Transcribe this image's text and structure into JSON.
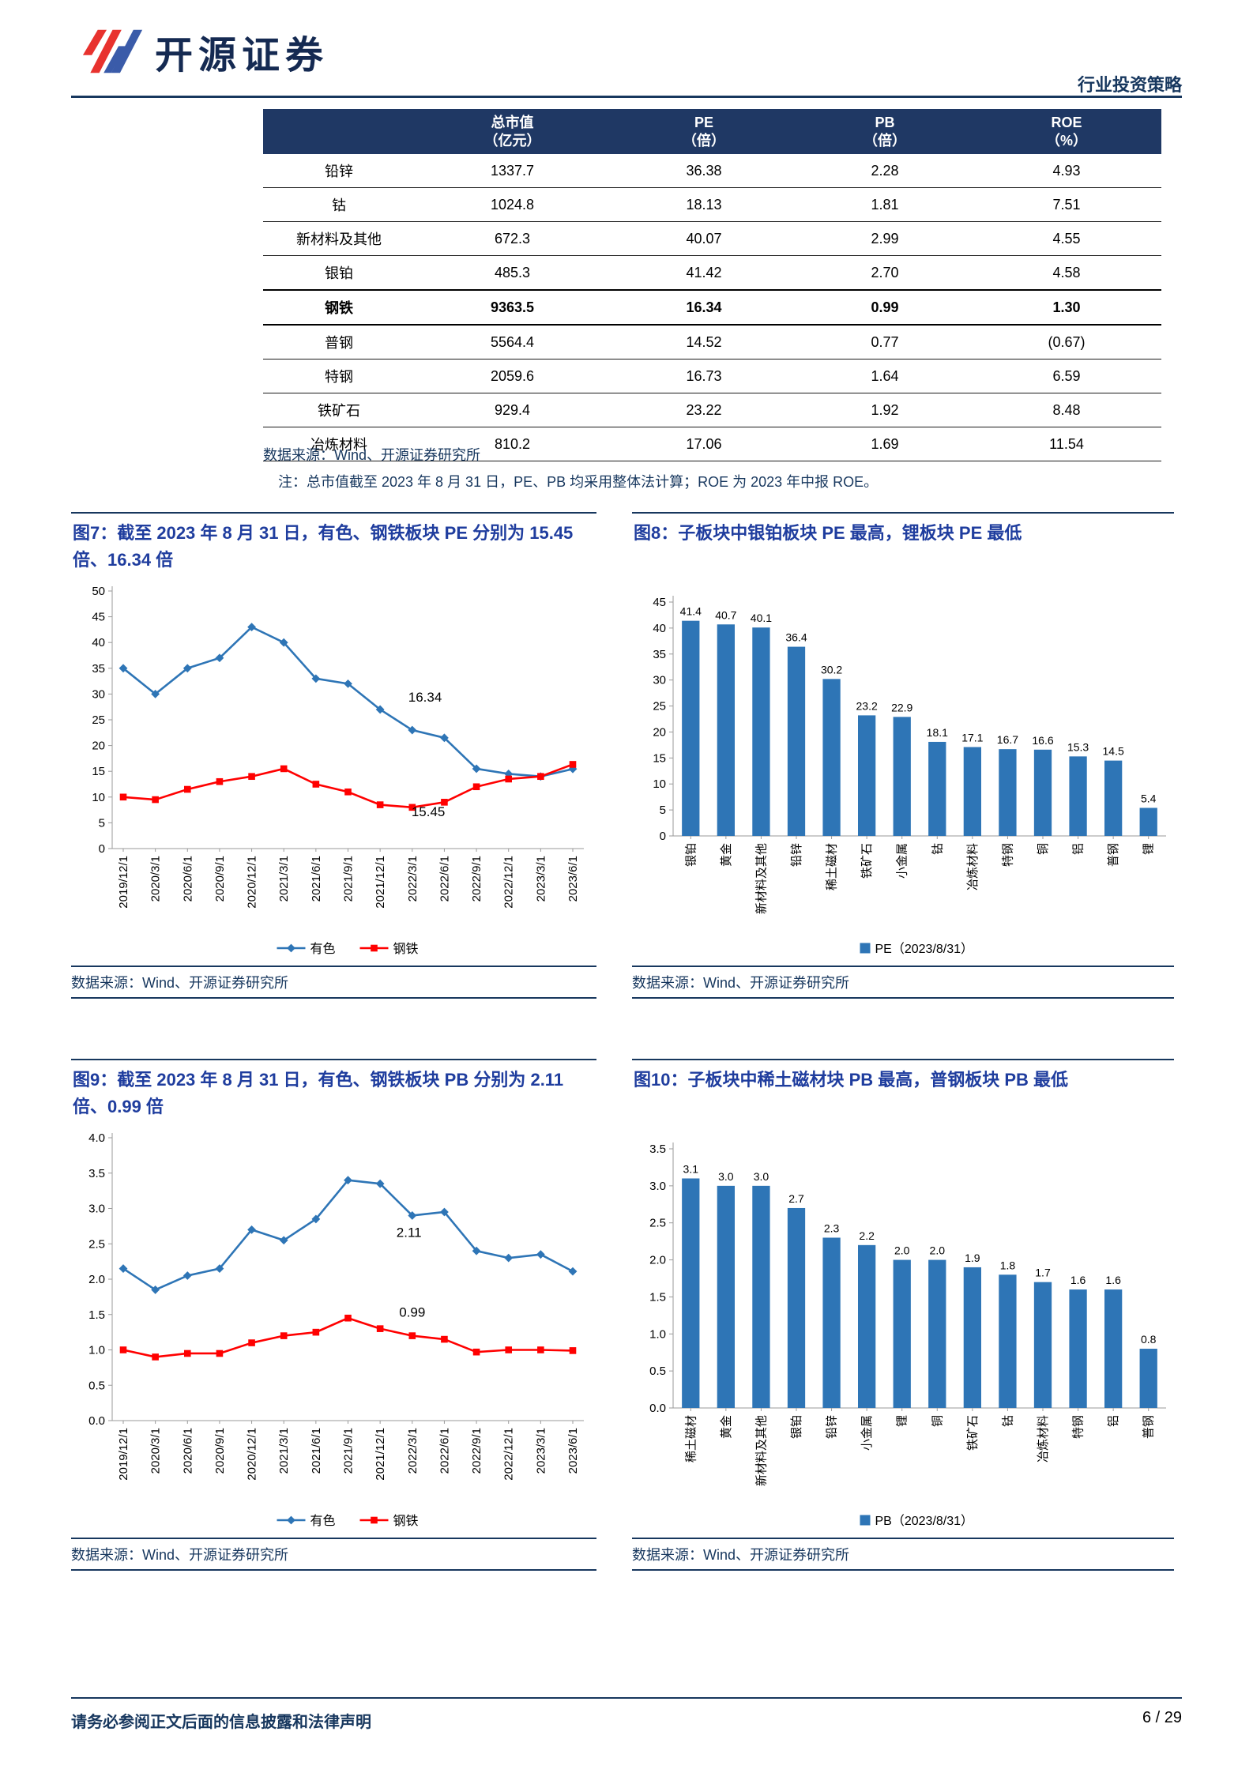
{
  "page": {
    "brand": "开源证券",
    "doc_type": "行业投资策略",
    "footer_left": "请务必参阅正文后面的信息披露和法律声明",
    "footer_right": "6 / 29"
  },
  "table": {
    "col_headers": [
      {
        "line1": "总市值",
        "line2": "（亿元）"
      },
      {
        "line1": "PE",
        "line2": "（倍）"
      },
      {
        "line1": "PB",
        "line2": "（倍）"
      },
      {
        "line1": "ROE",
        "line2": "（%）"
      }
    ],
    "rows": [
      {
        "cells": [
          "铅锌",
          "1337.7",
          "36.38",
          "2.28",
          "4.93"
        ],
        "bold": false
      },
      {
        "cells": [
          "钴",
          "1024.8",
          "18.13",
          "1.81",
          "7.51"
        ],
        "bold": false
      },
      {
        "cells": [
          "新材料及其他",
          "672.3",
          "40.07",
          "2.99",
          "4.55"
        ],
        "bold": false
      },
      {
        "cells": [
          "银铂",
          "485.3",
          "41.42",
          "2.70",
          "4.58"
        ],
        "bold": false
      },
      {
        "cells": [
          "钢铁",
          "9363.5",
          "16.34",
          "0.99",
          "1.30"
        ],
        "bold": true
      },
      {
        "cells": [
          "普钢",
          "5564.4",
          "14.52",
          "0.77",
          "(0.67)"
        ],
        "bold": false
      },
      {
        "cells": [
          "特钢",
          "2059.6",
          "16.73",
          "1.64",
          "6.59"
        ],
        "bold": false
      },
      {
        "cells": [
          "铁矿石",
          "929.4",
          "23.22",
          "1.92",
          "8.48"
        ],
        "bold": false
      },
      {
        "cells": [
          "冶炼材料",
          "810.2",
          "17.06",
          "1.69",
          "11.54"
        ],
        "bold": false
      }
    ],
    "source": "数据来源：Wind、开源证券研究所",
    "note": "注：总市值截至 2023 年 8 月 31 日，PE、PB 均采用整体法计算；ROE 为 2023 年中报 ROE。"
  },
  "chart_data": [
    {
      "id": "fig7",
      "type": "line",
      "title": "图7：截至 2023 年 8 月 31 日，有色、钢铁板块 PE 分别为 15.45 倍、16.34 倍",
      "source": "数据来源：Wind、开源证券研究所",
      "x": [
        "2019/12/1",
        "2020/3/1",
        "2020/6/1",
        "2020/9/1",
        "2020/12/1",
        "2021/3/1",
        "2021/6/1",
        "2021/9/1",
        "2021/12/1",
        "2022/3/1",
        "2022/6/1",
        "2022/9/1",
        "2022/12/1",
        "2023/3/1",
        "2023/6/1"
      ],
      "ylim": [
        0,
        50
      ],
      "ytick_step": 5,
      "y_decimals": 0,
      "grid": false,
      "legend_position": "bottom",
      "series": [
        {
          "name": "有色",
          "color": "#2E75B6",
          "marker": "diamond",
          "values": [
            35,
            30,
            35,
            37,
            43,
            40,
            33,
            32,
            27,
            23,
            21.5,
            15.5,
            14.5,
            14,
            15.45
          ]
        },
        {
          "name": "钢铁",
          "color": "#FF0000",
          "marker": "square",
          "values": [
            10,
            9.5,
            11.5,
            13,
            14,
            15.5,
            12.5,
            11,
            8.5,
            8,
            9,
            12,
            13.5,
            14,
            16.34
          ]
        }
      ],
      "annotations": [
        {
          "text": "16.34",
          "xi": 9.4,
          "y": 28.5
        },
        {
          "text": "15.45",
          "xi": 9.5,
          "y": 6.3
        }
      ]
    },
    {
      "id": "fig8",
      "type": "bar",
      "title": "图8：子板块中银铂板块 PE 最高，锂板块 PE 最低",
      "source": "数据来源：Wind、开源证券研究所",
      "categories": [
        "银铂",
        "黄金",
        "新材料及其他",
        "铅锌",
        "稀土磁材",
        "铁矿石",
        "小金属",
        "钴",
        "冶炼材料",
        "特钢",
        "铜",
        "铝",
        "普钢",
        "锂"
      ],
      "values": [
        41.4,
        40.7,
        40.1,
        36.4,
        30.2,
        23.2,
        22.9,
        18.1,
        17.1,
        16.7,
        16.6,
        15.3,
        14.5,
        5.4
      ],
      "ylim": [
        0,
        45
      ],
      "ytick_step": 5,
      "y_decimals": 0,
      "label_decimals": 1,
      "grid": false,
      "bar_color": "#2E75B6",
      "legend_label": "PE（2023/8/31）",
      "legend_position": "bottom"
    },
    {
      "id": "fig9",
      "type": "line",
      "title": "图9：截至 2023 年 8 月 31 日，有色、钢铁板块 PB 分别为 2.11 倍、0.99 倍",
      "source": "数据来源：Wind、开源证券研究所",
      "x": [
        "2019/12/1",
        "2020/3/1",
        "2020/6/1",
        "2020/9/1",
        "2020/12/1",
        "2021/3/1",
        "2021/6/1",
        "2021/9/1",
        "2021/12/1",
        "2022/3/1",
        "2022/6/1",
        "2022/9/1",
        "2022/12/1",
        "2023/3/1",
        "2023/6/1"
      ],
      "ylim": [
        0,
        4
      ],
      "ytick_step": 0.5,
      "y_decimals": 1,
      "grid": false,
      "legend_position": "bottom",
      "series": [
        {
          "name": "有色",
          "color": "#2E75B6",
          "marker": "diamond",
          "values": [
            2.15,
            1.85,
            2.05,
            2.15,
            2.7,
            2.55,
            2.85,
            3.4,
            3.35,
            2.9,
            2.95,
            2.4,
            2.3,
            2.35,
            2.11
          ]
        },
        {
          "name": "钢铁",
          "color": "#FF0000",
          "marker": "square",
          "values": [
            1.0,
            0.9,
            0.95,
            0.95,
            1.1,
            1.2,
            1.25,
            1.45,
            1.3,
            1.2,
            1.15,
            0.97,
            1.0,
            1.0,
            0.99
          ]
        }
      ],
      "annotations": [
        {
          "text": "2.11",
          "xi": 8.9,
          "y": 2.6
        },
        {
          "text": "0.99",
          "xi": 9.0,
          "y": 1.47
        }
      ]
    },
    {
      "id": "fig10",
      "type": "bar",
      "title": "图10：子板块中稀土磁材块 PB 最高，普钢板块 PB 最低",
      "source": "数据来源：Wind、开源证券研究所",
      "categories": [
        "稀土磁材",
        "黄金",
        "新材料及其他",
        "银铂",
        "铅锌",
        "小金属",
        "锂",
        "铜",
        "铁矿石",
        "钴",
        "冶炼材料",
        "特钢",
        "铝",
        "普钢"
      ],
      "values": [
        3.1,
        3.0,
        3.0,
        2.7,
        2.3,
        2.2,
        2.0,
        2.0,
        1.9,
        1.8,
        1.7,
        1.6,
        1.6,
        0.8
      ],
      "ylim": [
        0,
        3.5
      ],
      "ytick_step": 0.5,
      "y_decimals": 1,
      "label_decimals": 1,
      "grid": false,
      "bar_color": "#2E75B6",
      "legend_label": "PB（2023/8/31）",
      "legend_position": "bottom"
    }
  ]
}
